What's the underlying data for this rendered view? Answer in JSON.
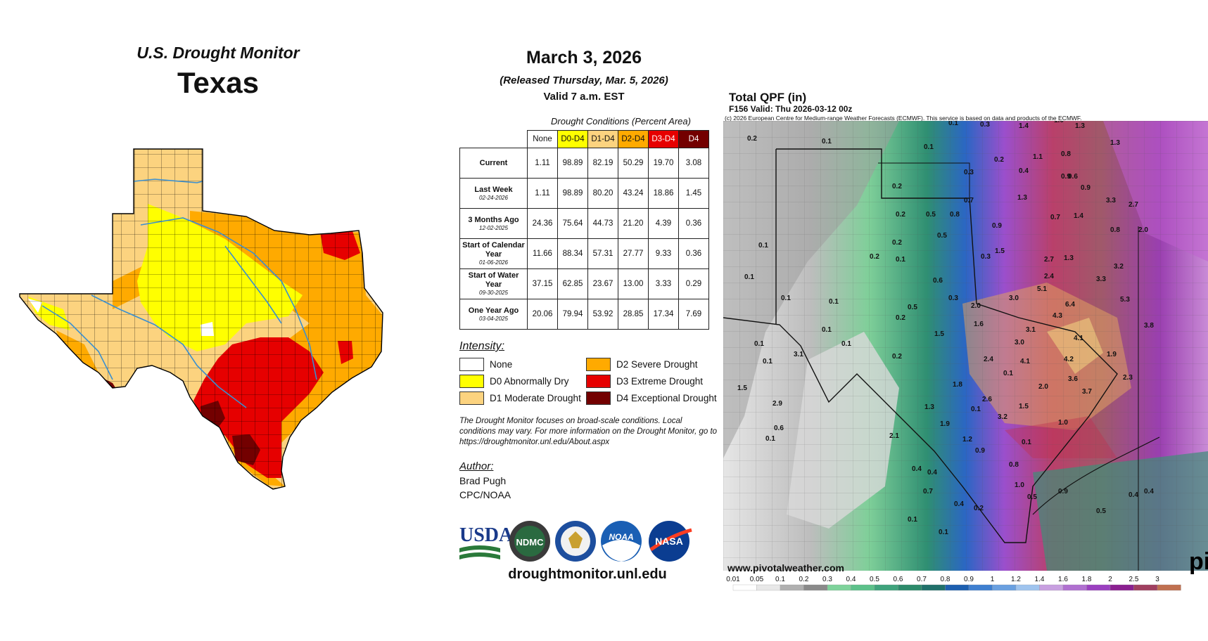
{
  "left_panel": {
    "title": "U.S. Drought Monitor",
    "state": "Texas"
  },
  "middle_panel": {
    "date": "March 3, 2026",
    "released": "(Released Thursday, Mar. 5, 2026)",
    "valid": "Valid 7 a.m. EST",
    "table_caption": "Drought Conditions (Percent Area)",
    "columns": [
      "None",
      "D0-D4",
      "D1-D4",
      "D2-D4",
      "D3-D4",
      "D4"
    ],
    "column_colors": [
      "#ffffff",
      "#ffff00",
      "#fcd37f",
      "#ffaa00",
      "#e60000",
      "#730000"
    ],
    "rows": [
      {
        "label": "Current",
        "sub": "",
        "values": [
          "1.11",
          "98.89",
          "82.19",
          "50.29",
          "19.70",
          "3.08"
        ]
      },
      {
        "label": "Last Week",
        "sub": "02-24-2026",
        "values": [
          "1.11",
          "98.89",
          "80.20",
          "43.24",
          "18.86",
          "1.45"
        ]
      },
      {
        "label": "3 Months Ago",
        "sub": "12-02-2025",
        "values": [
          "24.36",
          "75.64",
          "44.73",
          "21.20",
          "4.39",
          "0.36"
        ]
      },
      {
        "label": "Start of Calendar Year",
        "sub": "01-06-2026",
        "values": [
          "11.66",
          "88.34",
          "57.31",
          "27.77",
          "9.33",
          "0.36"
        ]
      },
      {
        "label": "Start of Water Year",
        "sub": "09-30-2025",
        "values": [
          "37.15",
          "62.85",
          "23.67",
          "13.00",
          "3.33",
          "0.29"
        ]
      },
      {
        "label": "One Year Ago",
        "sub": "03-04-2025",
        "values": [
          "20.06",
          "79.94",
          "53.92",
          "28.85",
          "17.34",
          "7.69"
        ]
      }
    ],
    "intensity_title": "Intensity:",
    "legend": [
      {
        "label": "None",
        "color": "#ffffff"
      },
      {
        "label": "D0 Abnormally Dry",
        "color": "#ffff00"
      },
      {
        "label": "D1 Moderate Drought",
        "color": "#fcd37f"
      },
      {
        "label": "D2 Severe Drought",
        "color": "#ffaa00"
      },
      {
        "label": "D3 Extreme Drought",
        "color": "#e60000"
      },
      {
        "label": "D4 Exceptional Drought",
        "color": "#730000"
      }
    ],
    "note": "The Drought Monitor focuses on broad-scale conditions. Local conditions may vary. For more information on the Drought Monitor, go to https://droughtmonitor.unl.edu/About.aspx",
    "author_title": "Author:",
    "author_name": "Brad Pugh",
    "author_org": "CPC/NOAA",
    "logos": [
      "USDA",
      "NDMC",
      "NOAA",
      "NASA"
    ],
    "website": "droughtmonitor.unl.edu"
  },
  "right_panel": {
    "title": "Total QPF (in)",
    "valid": "F156 Valid: Thu 2026-03-12 00z",
    "copyright": "(c) 2026 European Centre for Medium-range Weather Forecasts (ECMWF). This service is based on data and products of the ECMWF.",
    "site": "www.pivotalweather.com",
    "watermark": "pi",
    "colorbar_ticks": [
      "0.01",
      "0.05",
      "0.1",
      "0.2",
      "0.3",
      "0.4",
      "0.5",
      "0.6",
      "0.7",
      "0.8",
      "0.9",
      "1",
      "1.2",
      "1.4",
      "1.6",
      "1.8",
      "2",
      "2.5",
      "3"
    ],
    "colorbar_colors": [
      "#ffffff",
      "#e8e8e8",
      "#b0b0b0",
      "#8a8a8a",
      "#7ed39b",
      "#5cc18a",
      "#3fa37c",
      "#2c8a6a",
      "#20706a",
      "#1d5fb0",
      "#3f7fd0",
      "#6aa0e0",
      "#9fc4ee",
      "#c8a0e0",
      "#b070d0",
      "#9a40c0",
      "#8a2090",
      "#a04060",
      "#c07050"
    ],
    "map_labels": [
      "0.2",
      "0.1",
      "0.1",
      "0.3",
      "1.4",
      "1.0",
      "1.3",
      "0.1",
      "0.3",
      "0.2",
      "0.4",
      "1.1",
      "0.8",
      "1.3",
      "0.6",
      "0.9",
      "0.9",
      "0.1",
      "0.1",
      "0.2",
      "0.7",
      "1.3",
      "3.3",
      "2.7",
      "0.2",
      "0.5",
      "0.8",
      "0.9",
      "0.7",
      "1.4",
      "0.8",
      "2.0",
      "0.1",
      "0.2",
      "0.1",
      "1.5",
      "2.7",
      "1.3",
      "3.2",
      "0.1",
      "0.2",
      "0.5",
      "2.4",
      "3.3",
      "0.3",
      "5.1",
      "0.1",
      "0.5",
      "0.6",
      "0.3",
      "3.0",
      "6.4",
      "5.3",
      "0.1",
      "0.2",
      "2.0",
      "4.3",
      "3.8",
      "1.5",
      "1.6",
      "3.1",
      "0.1",
      "4.1",
      "0.1",
      "0.2",
      "3.0",
      "1.9",
      "2.4",
      "4.1",
      "4.2",
      "3.1",
      "0.1",
      "3.6",
      "2.3",
      "1.8",
      "2.0",
      "1.5",
      "2.6",
      "1.5",
      "0.1",
      "2.9",
      "3.7",
      "3.2",
      "1.0",
      "0.6",
      "1.3",
      "1.9",
      "0.1",
      "1.2",
      "0.9",
      "2.1",
      "0.1",
      "0.4",
      "0.4",
      "0.8",
      "1.0",
      "0.7",
      "0.9",
      "0.5",
      "0.5",
      "0.4",
      "0.4",
      "0.2",
      "0.4",
      "0.1",
      "0.1"
    ]
  }
}
